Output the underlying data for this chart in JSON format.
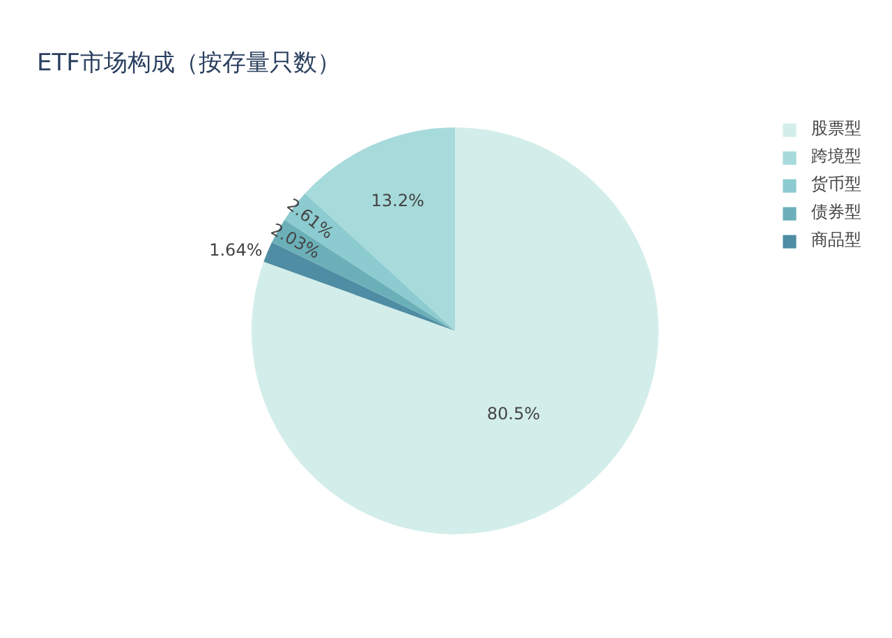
{
  "chart_data": {
    "type": "pie",
    "title": "ETF市场构成（按存量只数）",
    "categories": [
      "股票型",
      "跨境型",
      "货币型",
      "债券型",
      "商品型"
    ],
    "values": [
      80.5,
      13.2,
      2.61,
      2.03,
      1.64
    ],
    "colors": [
      "#d3eeea",
      "#a7dadb",
      "#8ccbcf",
      "#6bb0b9",
      "#4e8da3"
    ],
    "value_labels": [
      "80.5%",
      "13.2%",
      "2.61%",
      "2.03%",
      "1.64%"
    ],
    "legend": "top right"
  }
}
